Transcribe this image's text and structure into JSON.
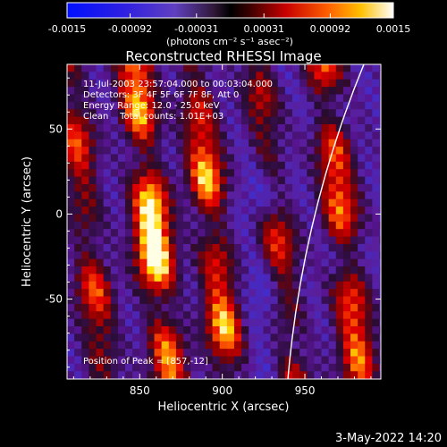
{
  "colorbar": {
    "ticks": [
      "-0.0015",
      "-0.00092",
      "-0.00031",
      "0.00031",
      "0.00092",
      "0.0015"
    ],
    "values": [
      -0.0015,
      -0.00092,
      -0.00031,
      0.00031,
      0.00092,
      0.0015
    ],
    "range": [
      -0.0015,
      0.0015
    ],
    "units": "(photons cm⁻² s⁻¹ asec⁻²)"
  },
  "chart_data": {
    "type": "heatmap",
    "title": "Reconstructed RHESSI Image",
    "xlabel": "Heliocentric X (arcsec)",
    "ylabel": "Heliocentric Y (arcsec)",
    "xlim": [
      806,
      996
    ],
    "ylim": [
      -97,
      88
    ],
    "xticks": [
      850,
      900,
      950
    ],
    "yticks": [
      50,
      0,
      -50
    ],
    "info_lines": [
      "11-Jul-2003 23:57:04.000 to 00:03:04.000",
      "Detectors: 3F 4F 5F 6F 7F 8F, Att 0",
      "Energy Range: 12.0 - 25.0 keV",
      "Clean    Total counts: 1.01E+03"
    ],
    "peak_label": "Position of Peak = [857,-12]",
    "peak": [
      857,
      -12
    ],
    "stripes": [
      {
        "x": 817,
        "strength": 0.65
      },
      {
        "x": 857,
        "strength": 1.0
      },
      {
        "x": 893,
        "strength": 0.92
      },
      {
        "x": 932,
        "strength": 0.6
      },
      {
        "x": 972,
        "strength": 0.85
      }
    ],
    "limb": "white curve near x = 940"
  },
  "footer": {
    "date": "3-May-2022 14:20"
  }
}
